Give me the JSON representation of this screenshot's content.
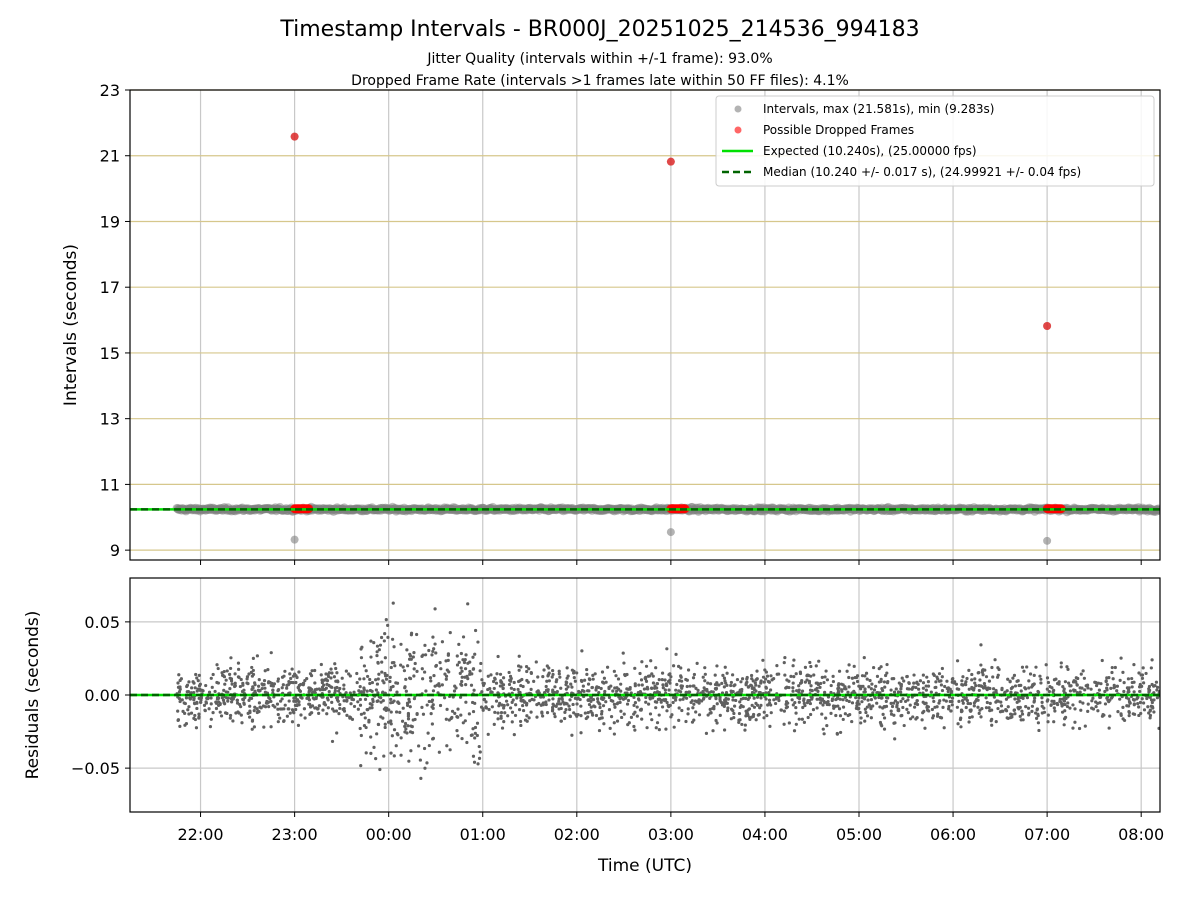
{
  "chart_data": {
    "title": "Timestamp Intervals - BR000J_20251025_214536_994183",
    "subtitle_lines": [
      "Jitter Quality (intervals within +/-1 frame): 93.0%",
      "Dropped Frame Rate (intervals >1 frames late within 50 FF files): 4.1%"
    ],
    "xlabel": "Time (UTC)",
    "x_tick_labels": [
      "22:00",
      "23:00",
      "00:00",
      "01:00",
      "02:00",
      "03:00",
      "04:00",
      "05:00",
      "06:00",
      "07:00",
      "08:00"
    ],
    "x_range_hours": [
      -0.75,
      10.2
    ],
    "x_data_range_hours": [
      -0.25,
      10.2
    ],
    "x_tick_hours": [
      0,
      1,
      2,
      3,
      4,
      5,
      6,
      7,
      8,
      9,
      10
    ],
    "charts": [
      {
        "type": "scatter",
        "panel": "intervals",
        "ylabel": "Intervals (seconds)",
        "ylim": [
          8.7,
          23
        ],
        "y_ticks": [
          9,
          11,
          13,
          15,
          17,
          19,
          21,
          23
        ],
        "y_tick_labels": [
          "9",
          "11",
          "13",
          "15",
          "17",
          "19",
          "21",
          "23"
        ],
        "grid": true,
        "legend_location": "top-right",
        "series": [
          {
            "name": "Intervals, max (21.581s), min (9.283s)",
            "kind": "scatter",
            "color": "#808080",
            "baseline": 10.24,
            "spread": 0.04,
            "outliers": [
              {
                "x": 1.0,
                "y": 21.581
              },
              {
                "x": 1.0,
                "y": 9.32
              },
              {
                "x": 5.0,
                "y": 20.82
              },
              {
                "x": 5.0,
                "y": 9.55
              },
              {
                "x": 9.0,
                "y": 15.82
              },
              {
                "x": 9.0,
                "y": 9.283
              }
            ]
          },
          {
            "name": "Possible Dropped Frames",
            "kind": "scatter",
            "color": "#ff0000",
            "points": [
              {
                "x": 1.0,
                "y": 21.581
              },
              {
                "x": 5.0,
                "y": 20.82
              },
              {
                "x": 9.0,
                "y": 15.82
              }
            ],
            "clusters": [
              {
                "x_start": 1.0,
                "x_end": 1.15,
                "y": 10.26
              },
              {
                "x_start": 5.0,
                "x_end": 5.15,
                "y": 10.26
              },
              {
                "x_start": 9.0,
                "x_end": 9.15,
                "y": 10.26
              }
            ]
          },
          {
            "name": "Expected (10.240s), (25.00000 fps)",
            "kind": "hline",
            "value": 10.24,
            "color": "#00e000",
            "style": "solid"
          },
          {
            "name": "Median (10.240 +/- 0.017 s), (24.99921 +/- 0.04 fps)",
            "kind": "hline",
            "value": 10.24,
            "color": "#006400",
            "style": "dashed"
          }
        ]
      },
      {
        "type": "scatter",
        "panel": "residuals",
        "ylabel": "Residuals (seconds)",
        "ylim": [
          -0.08,
          0.08
        ],
        "y_ticks": [
          0.05,
          0.0,
          -0.05
        ],
        "y_tick_labels": [
          "0.05",
          "0.00",
          "−0.05"
        ],
        "grid": true,
        "series": [
          {
            "name": "Residuals",
            "kind": "scatter",
            "color": "#606060",
            "spread": 0.017,
            "wide_spread_hours": [
              1.7,
              3.0
            ],
            "wide_spread": 0.04
          },
          {
            "name": "Zero line",
            "kind": "hline",
            "value": 0.0,
            "color": "#00e000",
            "style": "solid"
          },
          {
            "name": "Zero median",
            "kind": "hline",
            "value": 0.0,
            "color": "#006400",
            "style": "dashed"
          }
        ]
      }
    ]
  }
}
